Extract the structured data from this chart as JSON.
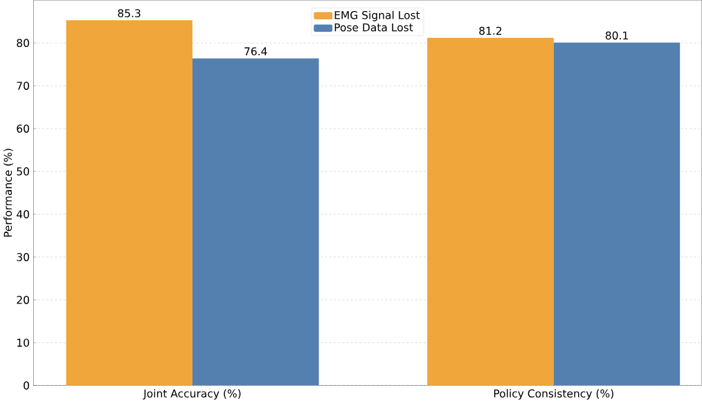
{
  "chart_data": {
    "type": "bar",
    "ylabel": "Performance (%)",
    "categories": [
      "Joint Accuracy (%)",
      "Policy Consistency (%)"
    ],
    "series": [
      {
        "name": "EMG Signal Lost",
        "color": "#f0a63a",
        "values": [
          85.3,
          81.2
        ]
      },
      {
        "name": "Pose Data Lost",
        "color": "#5480b0",
        "values": [
          76.4,
          80.1
        ]
      }
    ],
    "ylim": [
      0,
      90
    ],
    "yticks": [
      0,
      10,
      20,
      30,
      40,
      50,
      60,
      70,
      80
    ],
    "grid": "y",
    "legend": "top",
    "data_labels": true
  }
}
